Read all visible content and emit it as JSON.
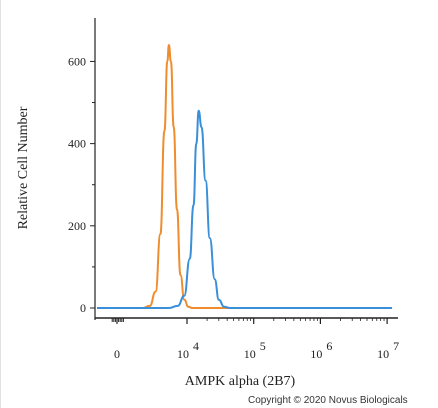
{
  "chart_data": {
    "type": "line",
    "xlabel": "AMPK alpha (2B7)",
    "ylabel": "Relative Cell Number",
    "x_scale": "biexponential",
    "x_ticks": [
      {
        "value": 0,
        "base": "0",
        "exp": ""
      },
      {
        "value": 10000,
        "base": "10",
        "exp": "4"
      },
      {
        "value": 100000,
        "base": "10",
        "exp": "5"
      },
      {
        "value": 1000000,
        "base": "10",
        "exp": "6"
      },
      {
        "value": 10000000,
        "base": "10",
        "exp": "7"
      }
    ],
    "y_ticks": [
      0,
      200,
      400,
      600
    ],
    "ylim": [
      0,
      640
    ],
    "grid": false,
    "legend": "none",
    "series": [
      {
        "color": "#ef8c2e",
        "peak_x": 5000,
        "peak_y": 640,
        "points": [
          [
            1800,
            0
          ],
          [
            2400,
            5
          ],
          [
            3000,
            40
          ],
          [
            3600,
            180
          ],
          [
            4200,
            430
          ],
          [
            4700,
            600
          ],
          [
            5000,
            640
          ],
          [
            5400,
            600
          ],
          [
            6000,
            440
          ],
          [
            6800,
            240
          ],
          [
            7800,
            80
          ],
          [
            9000,
            20
          ],
          [
            10500,
            3
          ],
          [
            12000,
            0
          ]
        ]
      },
      {
        "color": "#3a8fd8",
        "peak_x": 15000,
        "peak_y": 480,
        "points": [
          [
            5000,
            0
          ],
          [
            7000,
            5
          ],
          [
            9000,
            30
          ],
          [
            11000,
            120
          ],
          [
            12500,
            250
          ],
          [
            13800,
            400
          ],
          [
            15000,
            480
          ],
          [
            16500,
            440
          ],
          [
            19000,
            310
          ],
          [
            22000,
            170
          ],
          [
            26000,
            70
          ],
          [
            30000,
            20
          ],
          [
            36000,
            3
          ],
          [
            45000,
            0
          ]
        ]
      }
    ]
  },
  "footer": {
    "copyright": "Copyright © 2020 Novus Biologicals"
  }
}
